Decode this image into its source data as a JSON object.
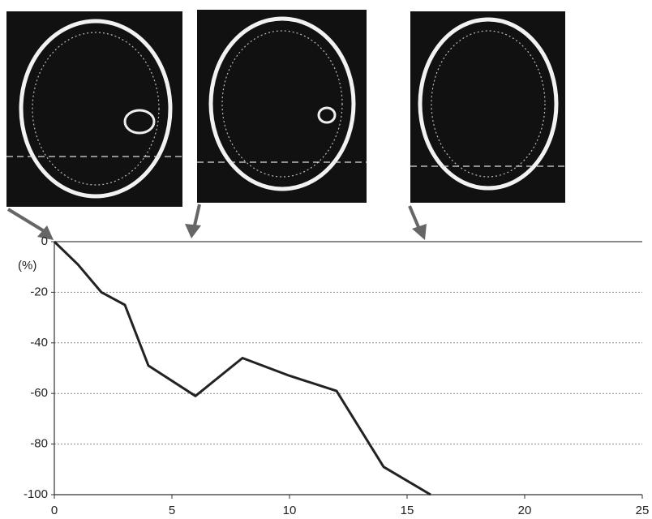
{
  "chart_data": {
    "type": "line",
    "y_label": "(%)",
    "x": [
      0,
      1,
      2,
      3,
      4,
      6,
      8,
      10,
      12,
      14,
      16
    ],
    "values": [
      0,
      -9,
      -20,
      -25,
      -49,
      -61,
      -46,
      -53,
      -59,
      -89,
      -100
    ],
    "color": "#222222",
    "xlim": [
      0,
      25
    ],
    "xticks": [
      0,
      5,
      10,
      15,
      20,
      25
    ],
    "ylim": [
      -100,
      0
    ],
    "yticks": [
      0,
      -20,
      -40,
      -60,
      -80,
      -100
    ],
    "grid": true
  }
}
